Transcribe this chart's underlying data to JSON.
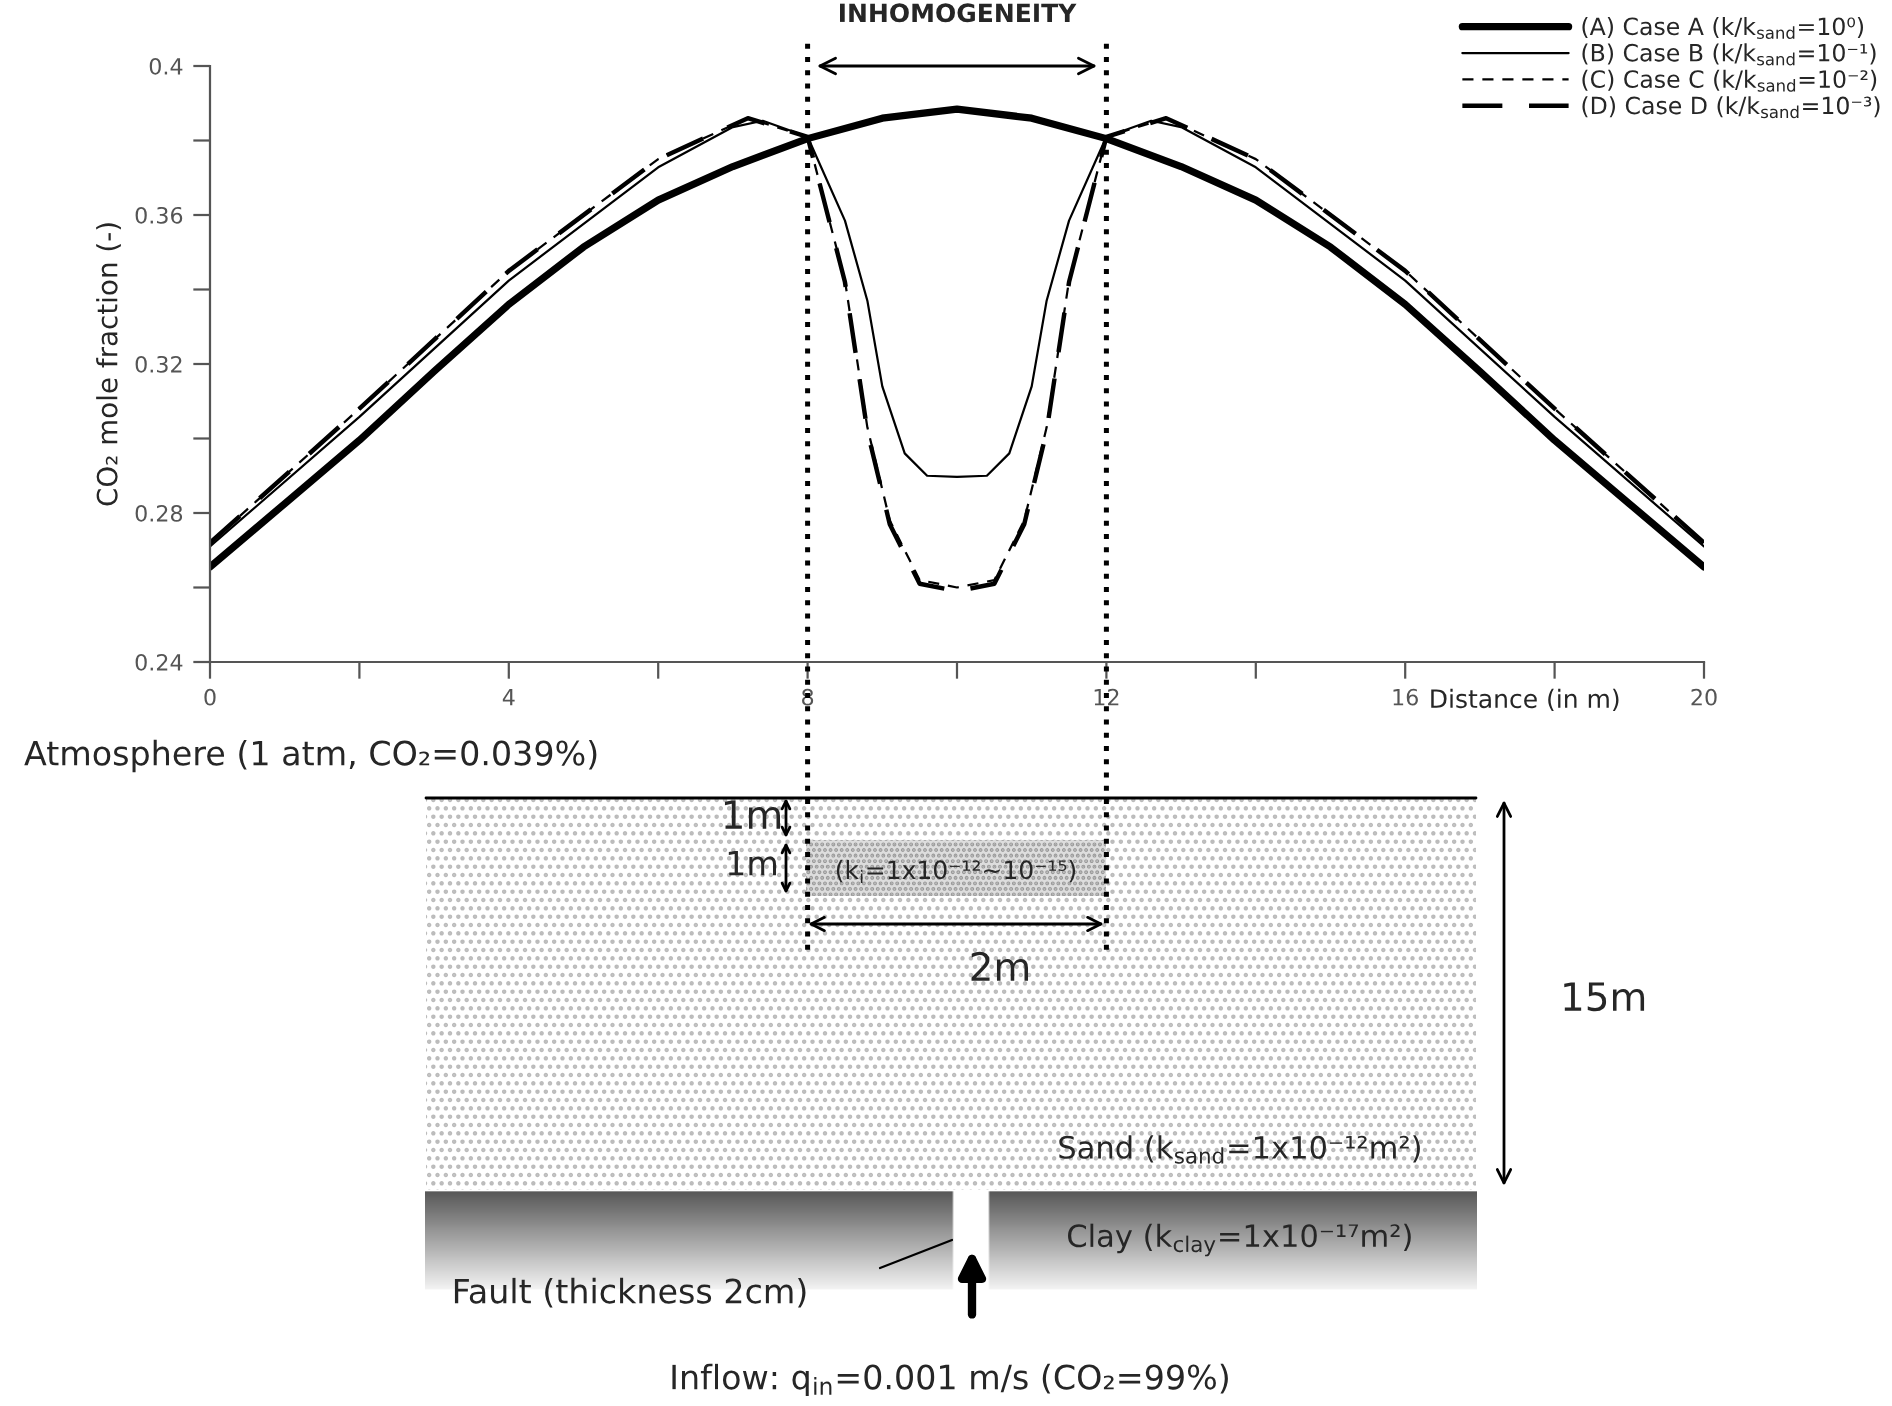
{
  "chart_data": {
    "type": "line",
    "xlabel": "Distance (in m)",
    "ylabel": "CO₂ mole fraction (-)",
    "xlim": [
      0,
      20
    ],
    "ylim": [
      0.24,
      0.4
    ],
    "xticks": [
      0,
      {
        "value": 2,
        "label": null
      },
      4,
      {
        "value": 6,
        "label": null
      },
      8,
      {
        "value": 10,
        "label": null
      },
      12,
      {
        "value": 14,
        "label": null
      },
      16,
      {
        "value": 18,
        "label": null
      },
      20
    ],
    "yticks": [
      0.24,
      {
        "value": 0.26,
        "label": null
      },
      0.28,
      {
        "value": 0.3,
        "label": null
      },
      0.32,
      {
        "value": 0.34,
        "label": null
      },
      0.36,
      {
        "value": 0.38,
        "label": null
      },
      0.4
    ],
    "grid": false,
    "legend": "top right",
    "marker": "none",
    "series": [
      {
        "name": "(A) Case A (k/k$_{sand}$=10⁰)",
        "color": "#000000",
        "line_style": "solid",
        "x": [
          0,
          1,
          2,
          3,
          4,
          5,
          6,
          7,
          8,
          9,
          10,
          11,
          12,
          13,
          14,
          15,
          16,
          17,
          18,
          19,
          20
        ],
        "values": [
          0.2655,
          0.2825,
          0.2995,
          0.318,
          0.336,
          0.3514,
          0.364,
          0.373,
          0.3805,
          0.386,
          0.3884,
          0.386,
          0.3805,
          0.373,
          0.364,
          0.3514,
          0.336,
          0.318,
          0.2995,
          0.2825,
          0.2655
        ]
      },
      {
        "name": "(B) Case B (k/k$_{sand}$=10⁻¹)",
        "color": "#000000",
        "line_style": "solid",
        "x": [
          0,
          2,
          4,
          6,
          7,
          7.4,
          8,
          8.5,
          8.8,
          9,
          9.3,
          9.6,
          10,
          10.4,
          10.7,
          11,
          11.2,
          11.5,
          12,
          12.6,
          13,
          14,
          16,
          18,
          20
        ],
        "values": [
          0.271,
          0.3058,
          0.3424,
          0.3728,
          0.3836,
          0.3853,
          0.381,
          0.3585,
          0.337,
          0.314,
          0.296,
          0.29,
          0.2897,
          0.29,
          0.296,
          0.314,
          0.337,
          0.3585,
          0.381,
          0.3853,
          0.3836,
          0.3728,
          0.3424,
          0.3058,
          0.271
        ]
      },
      {
        "name": "(C) Case C (k/k$_{sand}$=10⁻²)",
        "color": "#000000",
        "line_style": "dashed",
        "x": [
          0,
          2,
          4,
          6,
          7.2,
          8,
          8.5,
          8.8,
          9.1,
          9.5,
          10,
          10.5,
          10.9,
          11.2,
          11.5,
          12,
          12.8,
          14,
          16,
          18,
          20
        ],
        "values": [
          0.272,
          0.308,
          0.345,
          0.375,
          0.386,
          0.381,
          0.3424,
          0.303,
          0.278,
          0.262,
          0.26,
          0.262,
          0.278,
          0.303,
          0.3424,
          0.381,
          0.386,
          0.375,
          0.345,
          0.308,
          0.272
        ]
      },
      {
        "name": "(D) Case D (k/k$_{sand}$=10⁻³)",
        "color": "#000000",
        "line_style": "dashed",
        "x": [
          0,
          2,
          4,
          6,
          7.2,
          8,
          8.5,
          8.8,
          9.1,
          9.5,
          10,
          10.5,
          10.9,
          11.2,
          11.5,
          12,
          12.8,
          14,
          16,
          18,
          20
        ],
        "values": [
          0.272,
          0.308,
          0.345,
          0.375,
          0.386,
          0.381,
          0.342,
          0.302,
          0.277,
          0.261,
          0.259,
          0.261,
          0.277,
          0.302,
          0.342,
          0.381,
          0.386,
          0.375,
          0.345,
          0.308,
          0.272
        ]
      }
    ],
    "ref_lines": [
      {
        "axis": "x",
        "value": 8,
        "line_style": "dotted"
      },
      {
        "axis": "x",
        "value": 12,
        "line_style": "dotted"
      }
    ],
    "annotations": [
      "INHOMOGENEITY",
      "Atmosphere (1 atm, CO₂=0.039%)",
      "1m",
      "1m",
      "(k$_{i}$=1x10⁻¹²~10⁻¹⁵)",
      "2m",
      "15m",
      "Sand (k$_{sand}$=1x10⁻¹²m²)",
      "Clay (k$_{clay}$=1x10⁻¹⁷m²)",
      "Fault (thickness 2cm)",
      "Inflow: q$_{in}$=0.001 m/s (CO₂=99%)"
    ]
  }
}
